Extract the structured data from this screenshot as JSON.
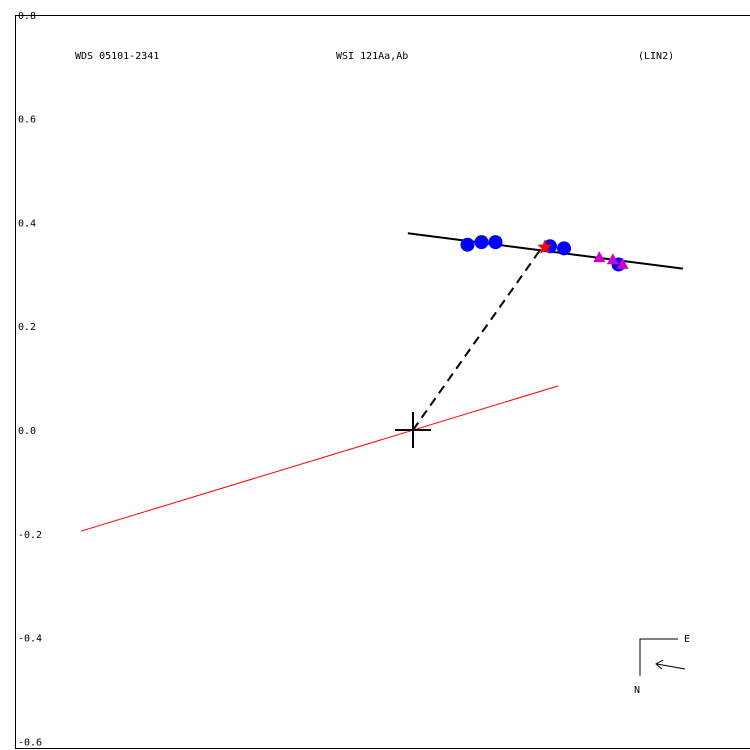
{
  "header": {
    "left": "WDS 05101-2341",
    "center": "WSI 121Aa,Ab",
    "right": "(LIN2)"
  },
  "compass": {
    "east": "E",
    "north": "N"
  },
  "chart_data": {
    "type": "scatter",
    "title": "WSI 121Aa,Ab",
    "xlabel": "",
    "ylabel": "",
    "xlim": [
      -0.77,
      0.64
    ],
    "ylim": [
      -0.6,
      0.8
    ],
    "y_ticks": [
      {
        "value": 0.8,
        "label": "0.8"
      },
      {
        "value": 0.6,
        "label": "0.6"
      },
      {
        "value": 0.4,
        "label": "0.4"
      },
      {
        "value": 0.2,
        "label": "0.2"
      },
      {
        "value": 0.0,
        "label": "0.0"
      },
      {
        "value": -0.2,
        "label": "-0.2"
      },
      {
        "value": -0.4,
        "label": "-0.4"
      },
      {
        "value": -0.6,
        "label": "-0.6"
      }
    ],
    "grid": false,
    "origin": {
      "x": 0.0,
      "y": 0.0
    },
    "fit_line": {
      "x": [
        -0.01,
        0.52
      ],
      "y": [
        0.379,
        0.311
      ]
    },
    "node_line": {
      "x": [
        -0.64,
        0.28
      ],
      "y": [
        -0.195,
        0.085
      ]
    },
    "connector": {
      "x": [
        0.0,
        0.25
      ],
      "y": [
        0.0,
        0.354
      ]
    },
    "series": [
      {
        "marker": "circle",
        "color": "#0000ff",
        "points": [
          {
            "x": 0.105,
            "y": 0.357
          },
          {
            "x": 0.132,
            "y": 0.362
          },
          {
            "x": 0.159,
            "y": 0.362
          },
          {
            "x": 0.264,
            "y": 0.354
          },
          {
            "x": 0.291,
            "y": 0.35
          },
          {
            "x": 0.396,
            "y": 0.319
          }
        ]
      },
      {
        "marker": "triangle",
        "color": "#cc00cc",
        "points": [
          {
            "x": 0.359,
            "y": 0.333
          },
          {
            "x": 0.385,
            "y": 0.329
          },
          {
            "x": 0.404,
            "y": 0.32
          }
        ]
      },
      {
        "marker": "star",
        "color": "#ff0000",
        "points": [
          {
            "x": 0.254,
            "y": 0.352
          }
        ]
      }
    ]
  }
}
